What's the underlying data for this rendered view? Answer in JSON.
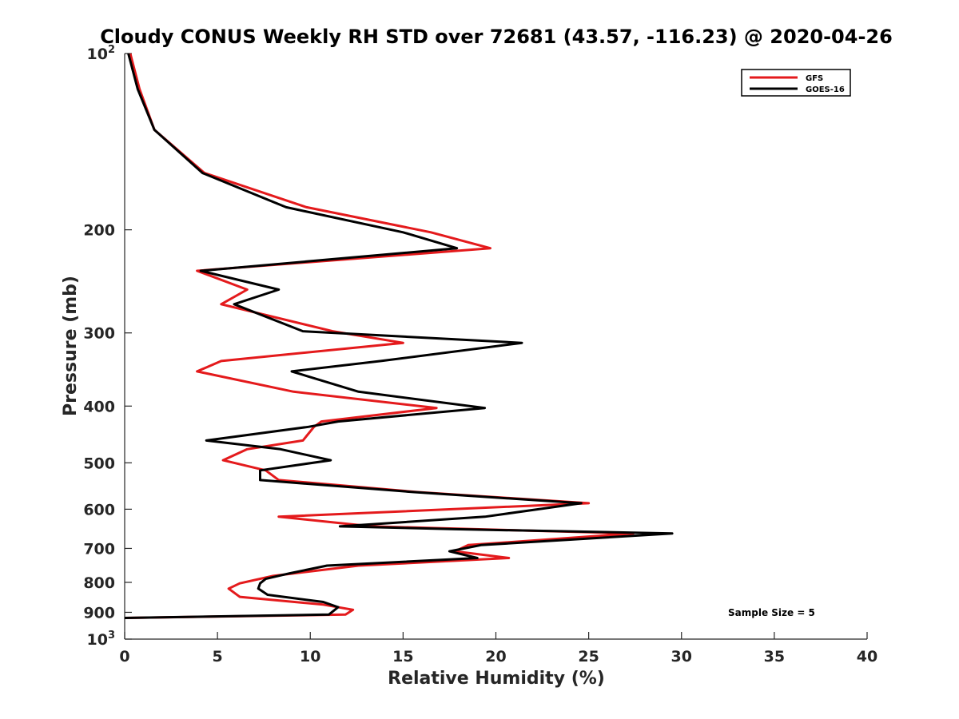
{
  "chart_data": {
    "type": "line",
    "title": "Cloudy CONUS Weekly RH STD over 72681 (43.57, -116.23) @ 2020-04-26",
    "xlabel": "Relative Humidity (%)",
    "ylabel": "Pressure (mb)",
    "xlim": [
      0,
      40
    ],
    "ylim": [
      100,
      1000
    ],
    "yscale": "log",
    "y_reversed": true,
    "grid": false,
    "legend_position": "top-right",
    "x_ticks": [
      "0",
      "5",
      "10",
      "15",
      "20",
      "25",
      "30",
      "35",
      "40"
    ],
    "y_ticks": [
      {
        "value": 100,
        "base": "10",
        "exp": "2"
      },
      {
        "value": 200,
        "label": "200"
      },
      {
        "value": 300,
        "label": "300"
      },
      {
        "value": 400,
        "label": "400"
      },
      {
        "value": 500,
        "label": "500"
      },
      {
        "value": 600,
        "label": "600"
      },
      {
        "value": 700,
        "label": "700"
      },
      {
        "value": 800,
        "label": "800"
      },
      {
        "value": 900,
        "label": "900"
      },
      {
        "value": 1000,
        "base": "10",
        "exp": "3"
      }
    ],
    "annotation": "Sample Size = 5",
    "series": [
      {
        "name": "GFS",
        "color": "#e41a1c",
        "points": [
          [
            0.3,
            100
          ],
          [
            0.8,
            115
          ],
          [
            1.6,
            135
          ],
          [
            4.3,
            160
          ],
          [
            9.8,
            183
          ],
          [
            16.5,
            202
          ],
          [
            19.7,
            215
          ],
          [
            3.9,
            235
          ],
          [
            6.6,
            253
          ],
          [
            5.2,
            268
          ],
          [
            11.2,
            298
          ],
          [
            15.0,
            312
          ],
          [
            5.2,
            335
          ],
          [
            3.9,
            349
          ],
          [
            9.1,
            378
          ],
          [
            16.8,
            403
          ],
          [
            10.6,
            425
          ],
          [
            10.2,
            434
          ],
          [
            9.6,
            458
          ],
          [
            6.6,
            474
          ],
          [
            5.3,
            495
          ],
          [
            7.6,
            515
          ],
          [
            8.3,
            535
          ],
          [
            15.8,
            561
          ],
          [
            25.0,
            586
          ],
          [
            8.3,
            618
          ],
          [
            13.3,
            642
          ],
          [
            27.4,
            660
          ],
          [
            18.5,
            691
          ],
          [
            17.8,
            708
          ],
          [
            20.7,
            727
          ],
          [
            12.6,
            749
          ],
          [
            8.0,
            780
          ],
          [
            6.2,
            803
          ],
          [
            5.6,
            820
          ],
          [
            6.2,
            847
          ],
          [
            10.7,
            873
          ],
          [
            12.3,
            891
          ],
          [
            11.9,
            908
          ],
          [
            0,
            920
          ]
        ]
      },
      {
        "name": "GOES-16",
        "color": "#000000",
        "points": [
          [
            0.2,
            100
          ],
          [
            0.7,
            115
          ],
          [
            1.6,
            135
          ],
          [
            4.2,
            160
          ],
          [
            8.7,
            183
          ],
          [
            15.0,
            202
          ],
          [
            17.9,
            215
          ],
          [
            4.1,
            235
          ],
          [
            8.3,
            253
          ],
          [
            5.9,
            268
          ],
          [
            9.6,
            298
          ],
          [
            21.4,
            312
          ],
          [
            13.8,
            335
          ],
          [
            9.0,
            349
          ],
          [
            12.6,
            378
          ],
          [
            19.4,
            403
          ],
          [
            11.5,
            425
          ],
          [
            9.9,
            434
          ],
          [
            4.4,
            458
          ],
          [
            8.4,
            474
          ],
          [
            11.1,
            495
          ],
          [
            7.3,
            515
          ],
          [
            7.3,
            535
          ],
          [
            15.6,
            561
          ],
          [
            24.6,
            586
          ],
          [
            19.4,
            618
          ],
          [
            11.6,
            642
          ],
          [
            17.8,
            649
          ],
          [
            29.5,
            660
          ],
          [
            19.2,
            691
          ],
          [
            17.5,
            708
          ],
          [
            19.0,
            727
          ],
          [
            10.9,
            749
          ],
          [
            8.9,
            772
          ],
          [
            7.6,
            789
          ],
          [
            7.3,
            803
          ],
          [
            7.2,
            820
          ],
          [
            7.7,
            840
          ],
          [
            10.7,
            864
          ],
          [
            11.5,
            882
          ],
          [
            11.0,
            908
          ],
          [
            0,
            920
          ]
        ]
      }
    ]
  }
}
